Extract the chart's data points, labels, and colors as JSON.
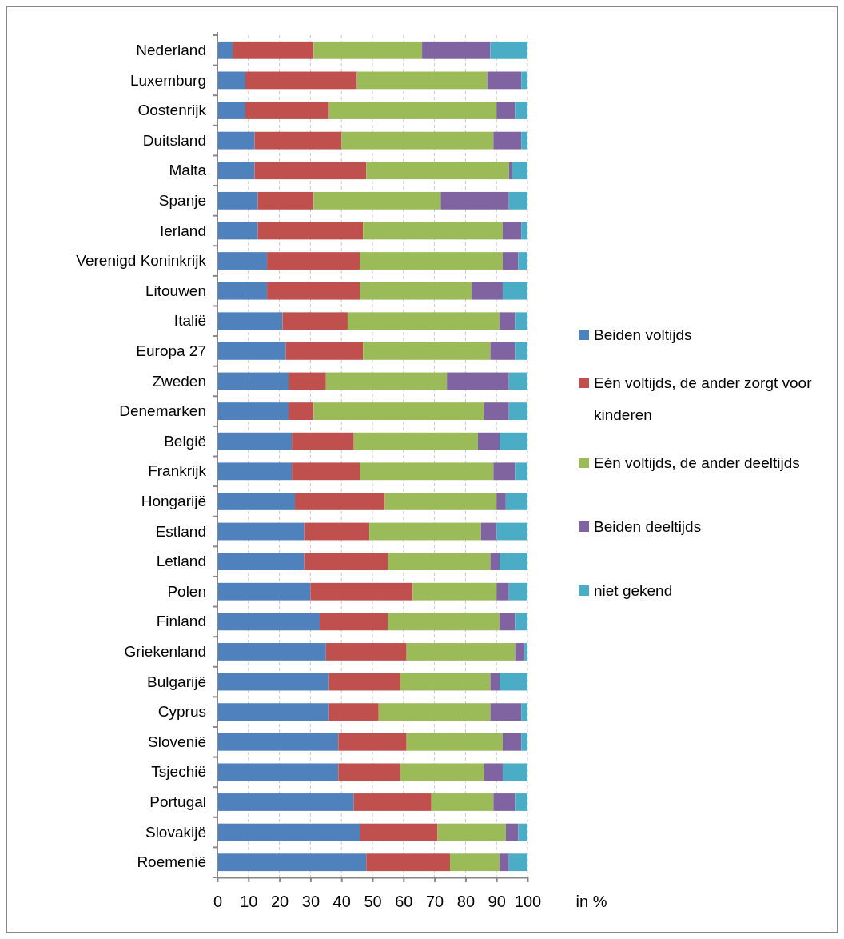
{
  "chart_data": {
    "type": "bar",
    "orientation": "horizontal",
    "stacked": true,
    "categories": [
      "Nederland",
      "Luxemburg",
      "Oostenrijk",
      "Duitsland",
      "Malta",
      "Spanje",
      "Ierland",
      "Verenigd Koninkrijk",
      "Litouwen",
      "Italië",
      "Europa 27",
      "Zweden",
      "Denemarken",
      "België",
      "Frankrijk",
      "Hongarijë",
      "Estland",
      "Letland",
      "Polen",
      "Finland",
      "Griekenland",
      "Bulgarijë",
      "Cyprus",
      "Slovenië",
      "Tsjechië",
      "Portugal",
      "Slovakijë",
      "Roemenië"
    ],
    "series": [
      {
        "name": "Beiden voltijds",
        "color": "#4f81bd",
        "values": [
          5,
          9,
          9,
          12,
          12,
          13,
          13,
          16,
          16,
          21,
          22,
          23,
          23,
          24,
          24,
          25,
          28,
          28,
          30,
          33,
          35,
          36,
          36,
          39,
          39,
          44,
          46,
          48
        ]
      },
      {
        "name": "Eén voltijds, de ander zorgt voor kinderen",
        "color": "#c0504d",
        "values": [
          26,
          36,
          27,
          28,
          36,
          18,
          34,
          30,
          30,
          21,
          25,
          12,
          8,
          20,
          22,
          29,
          21,
          27,
          33,
          22,
          26,
          23,
          16,
          22,
          20,
          25,
          25,
          27
        ]
      },
      {
        "name": "Eén voltijds, de ander deeltijds",
        "color": "#9bbb59",
        "values": [
          35,
          42,
          54,
          49,
          46,
          41,
          45,
          46,
          36,
          49,
          41,
          39,
          55,
          40,
          43,
          36,
          36,
          33,
          27,
          36,
          35,
          29,
          36,
          31,
          27,
          20,
          22,
          16
        ]
      },
      {
        "name": "Beiden deeltijds",
        "color": "#8064a2",
        "values": [
          22,
          11,
          6,
          9,
          1,
          22,
          6,
          5,
          10,
          5,
          8,
          20,
          8,
          7,
          7,
          3,
          5,
          3,
          4,
          5,
          3,
          3,
          10,
          6,
          6,
          7,
          4,
          3
        ]
      },
      {
        "name": "niet gekend",
        "color": "#4bacc6",
        "values": [
          12,
          2,
          4,
          2,
          5,
          6,
          2,
          3,
          8,
          4,
          4,
          6,
          6,
          9,
          4,
          7,
          10,
          9,
          6,
          4,
          1,
          9,
          2,
          2,
          8,
          4,
          3,
          6
        ]
      }
    ],
    "xlabel": "in %",
    "xlim": [
      0,
      100
    ],
    "xticks": [
      0,
      10,
      20,
      30,
      40,
      50,
      60,
      70,
      80,
      90,
      100
    ],
    "grid": "x",
    "legend": "right"
  }
}
